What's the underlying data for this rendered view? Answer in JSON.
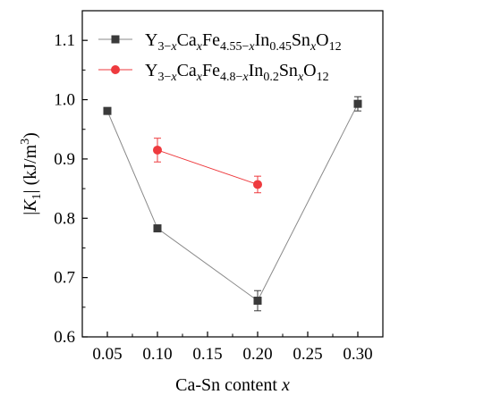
{
  "chart_data": {
    "type": "line",
    "xlabel": {
      "main": "Ca-Sn content ",
      "var": "x"
    },
    "ylabel": {
      "pre": "|",
      "var": "K",
      "sub": "1",
      "post": "| (kJ/m",
      "sup": "3",
      "end": ")"
    },
    "xlim": [
      0.025,
      0.325
    ],
    "ylim": [
      0.6,
      1.15
    ],
    "xticks": [
      "0.05",
      "0.10",
      "0.15",
      "0.20",
      "0.25",
      "0.30"
    ],
    "yticks": [
      "0.6",
      "0.7",
      "0.8",
      "0.9",
      "1.0",
      "1.1"
    ],
    "legend_position": "top-left",
    "series": [
      {
        "legend": [
          {
            "t": "Y"
          },
          {
            "t": "3−",
            "sub": true
          },
          {
            "t": "x",
            "sub": true,
            "italic": true
          },
          {
            "t": "Ca"
          },
          {
            "t": "x",
            "sub": true,
            "italic": true
          },
          {
            "t": "Fe"
          },
          {
            "t": "4.55−",
            "sub": true
          },
          {
            "t": "x",
            "sub": true,
            "italic": true
          },
          {
            "t": "In"
          },
          {
            "t": "0.45",
            "sub": true
          },
          {
            "t": "Sn"
          },
          {
            "t": "x",
            "sub": true,
            "italic": true
          },
          {
            "t": "O"
          },
          {
            "t": "12",
            "sub": true
          }
        ],
        "color": "#3a3a3a",
        "marker": "square",
        "x": [
          0.05,
          0.1,
          0.2,
          0.3
        ],
        "y": [
          0.981,
          0.783,
          0.661,
          0.993
        ],
        "err": [
          0.004,
          0.004,
          0.017,
          0.012
        ]
      },
      {
        "legend": [
          {
            "t": "Y"
          },
          {
            "t": "3−",
            "sub": true
          },
          {
            "t": "x",
            "sub": true,
            "italic": true
          },
          {
            "t": "Ca"
          },
          {
            "t": "x",
            "sub": true,
            "italic": true
          },
          {
            "t": "Fe"
          },
          {
            "t": "4.8−",
            "sub": true
          },
          {
            "t": "x",
            "sub": true,
            "italic": true
          },
          {
            "t": "In"
          },
          {
            "t": "0.2",
            "sub": true
          },
          {
            "t": "Sn"
          },
          {
            "t": "x",
            "sub": true,
            "italic": true
          },
          {
            "t": "O"
          },
          {
            "t": "12",
            "sub": true
          }
        ],
        "color": "#ee3a3e",
        "marker": "circle",
        "x": [
          0.1,
          0.2
        ],
        "y": [
          0.915,
          0.857
        ],
        "err": [
          0.02,
          0.014
        ]
      }
    ]
  }
}
